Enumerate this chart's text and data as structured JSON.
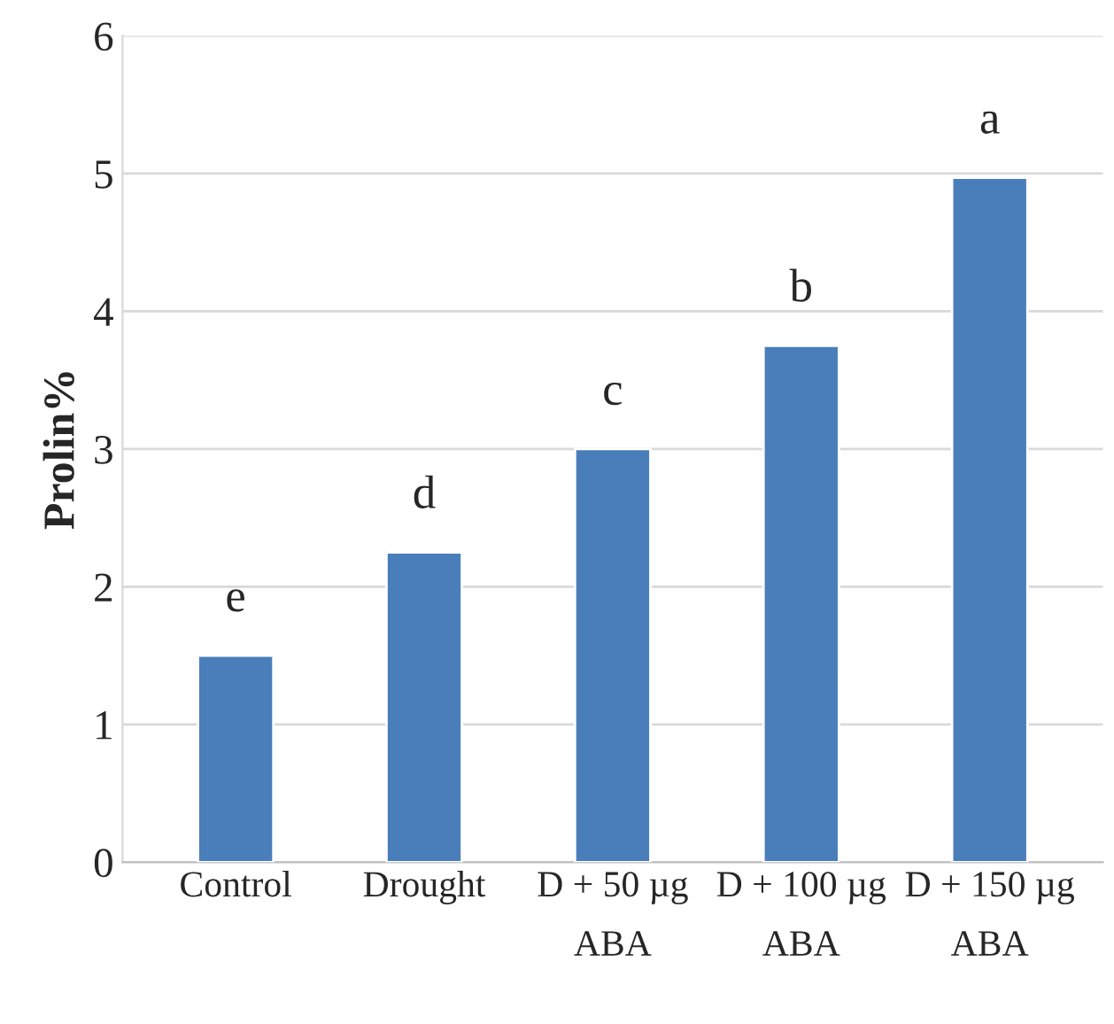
{
  "chart_data": {
    "type": "bar",
    "ylabel": "Prolin%",
    "categories": [
      "Control",
      "Drought",
      "D + 50 µg\nABA",
      "D + 100 µg\nABA",
      "D + 150 µg\nABA"
    ],
    "values": [
      1.5,
      2.25,
      3.0,
      3.75,
      4.97
    ],
    "color": "#4a7ebb",
    "ylim": [
      0,
      6
    ],
    "yticks": [
      0,
      1,
      2,
      3,
      4,
      5,
      6
    ],
    "grid": "y",
    "legend": false,
    "annotations": [
      {
        "text": "e",
        "x": "Control",
        "y": 1.5
      },
      {
        "text": "d",
        "x": "Drought",
        "y": 2.25
      },
      {
        "text": "c",
        "x": "D + 50 µg\nABA",
        "y": 3.0
      },
      {
        "text": "b",
        "x": "D + 100 µg\nABA",
        "y": 3.75
      },
      {
        "text": "a",
        "x": "D + 150 µg\nABA",
        "y": 4.97
      }
    ]
  }
}
